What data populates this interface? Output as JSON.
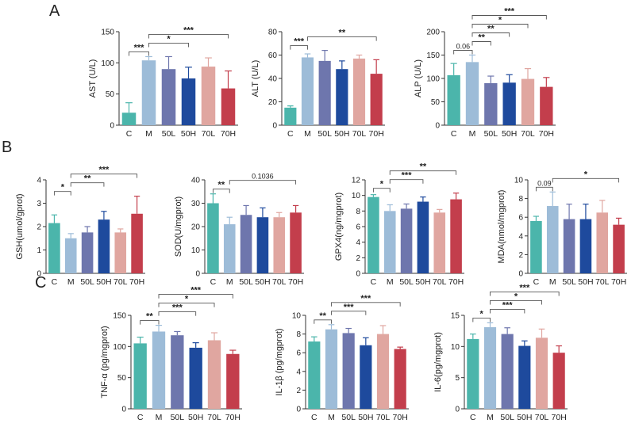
{
  "panels": [
    {
      "letter": "A"
    },
    {
      "letter": "B"
    },
    {
      "letter": "C"
    }
  ],
  "colors": [
    "#4bb5ab",
    "#9dbcd8",
    "#6e76ad",
    "#1e4a9d",
    "#e0a6a0",
    "#c33e4c"
  ],
  "chart_data": [
    {
      "type": "bar",
      "panel": "A",
      "ylabel": "AST (U/L)",
      "categories": [
        "C",
        "M",
        "50L",
        "50H",
        "70L",
        "70H"
      ],
      "values": [
        20,
        104,
        90,
        75,
        94,
        59
      ],
      "errors": [
        16,
        6,
        20,
        18,
        14,
        28
      ],
      "ylim": [
        0,
        150
      ],
      "yticks": [
        "0",
        "50",
        "100",
        "150"
      ],
      "comparisons": [
        {
          "from": 0,
          "to": 1,
          "label": "***"
        },
        {
          "from": 1,
          "to": 3,
          "label": "*"
        },
        {
          "from": 1,
          "to": 5,
          "label": "***"
        }
      ]
    },
    {
      "type": "bar",
      "panel": "A",
      "ylabel": "ALT (U/L)",
      "categories": [
        "C",
        "M",
        "50L",
        "50H",
        "70L",
        "70H"
      ],
      "values": [
        15,
        58,
        55,
        48,
        57,
        44
      ],
      "errors": [
        1.5,
        3,
        9,
        7,
        3,
        12
      ],
      "ylim": [
        0,
        80
      ],
      "yticks": [
        "0",
        "20",
        "40",
        "60",
        "80"
      ],
      "comparisons": [
        {
          "from": 0,
          "to": 1,
          "label": "***"
        },
        {
          "from": 1,
          "to": 5,
          "label": "**"
        }
      ]
    },
    {
      "type": "bar",
      "panel": "A",
      "ylabel": "ALP (U/L)",
      "categories": [
        "C",
        "M",
        "50L",
        "50H",
        "70L",
        "70H"
      ],
      "values": [
        107,
        135,
        90,
        91,
        99,
        82
      ],
      "errors": [
        25,
        15,
        15,
        17,
        22,
        20
      ],
      "ylim": [
        0,
        200
      ],
      "yticks": [
        "0",
        "50",
        "100",
        "150",
        "200"
      ],
      "comparisons": [
        {
          "from": 0,
          "to": 1,
          "label": "0.06"
        },
        {
          "from": 1,
          "to": 2,
          "label": "**"
        },
        {
          "from": 1,
          "to": 3,
          "label": "**"
        },
        {
          "from": 1,
          "to": 4,
          "label": "*"
        },
        {
          "from": 1,
          "to": 5,
          "label": "***"
        }
      ]
    },
    {
      "type": "bar",
      "panel": "B",
      "ylabel": "GSH(umol/gprot)",
      "categories": [
        "C",
        "M",
        "50L",
        "50H",
        "70L",
        "70H"
      ],
      "values": [
        2.15,
        1.5,
        1.75,
        2.3,
        1.75,
        2.55
      ],
      "errors": [
        0.35,
        0.2,
        0.25,
        0.35,
        0.15,
        0.75
      ],
      "ylim": [
        0,
        4
      ],
      "yticks": [
        "0",
        "1",
        "2",
        "3",
        "4"
      ],
      "comparisons": [
        {
          "from": 0,
          "to": 1,
          "label": "*"
        },
        {
          "from": 1,
          "to": 3,
          "label": "**"
        },
        {
          "from": 1,
          "to": 5,
          "label": "***"
        }
      ]
    },
    {
      "type": "bar",
      "panel": "B",
      "ylabel": "SOD(U/mgprot)",
      "categories": [
        "C",
        "M",
        "50L",
        "50H",
        "70L",
        "70H"
      ],
      "values": [
        30,
        21,
        25,
        24,
        24,
        26
      ],
      "errors": [
        4,
        3,
        4,
        4,
        2,
        3
      ],
      "ylim": [
        0,
        40
      ],
      "yticks": [
        "0",
        "10",
        "20",
        "30",
        "40"
      ],
      "comparisons": [
        {
          "from": 0,
          "to": 1,
          "label": "**"
        },
        {
          "from": 1,
          "to": 5,
          "label": "0.1036"
        }
      ]
    },
    {
      "type": "bar",
      "panel": "B",
      "ylabel": "GPX4(ng/mgprot)",
      "categories": [
        "C",
        "M",
        "50L",
        "50H",
        "70L",
        "70H"
      ],
      "values": [
        9.8,
        8.0,
        8.3,
        9.2,
        7.8,
        9.5
      ],
      "errors": [
        0.3,
        0.8,
        0.6,
        0.6,
        0.4,
        0.8
      ],
      "ylim": [
        0,
        12
      ],
      "yticks": [
        "0",
        "2",
        "4",
        "6",
        "8",
        "10",
        "12"
      ],
      "comparisons": [
        {
          "from": 0,
          "to": 1,
          "label": "*"
        },
        {
          "from": 1,
          "to": 3,
          "label": "***"
        },
        {
          "from": 1,
          "to": 5,
          "label": "**"
        }
      ]
    },
    {
      "type": "bar",
      "panel": "B",
      "ylabel": "MDA(nmol/mgprot)",
      "categories": [
        "C",
        "M",
        "50L",
        "50H",
        "70L",
        "70H"
      ],
      "values": [
        5.6,
        7.2,
        5.8,
        5.8,
        6.5,
        5.2
      ],
      "errors": [
        0.5,
        1.5,
        1.6,
        1.6,
        1.3,
        0.7
      ],
      "ylim": [
        0,
        10
      ],
      "yticks": [
        "0",
        "2",
        "4",
        "6",
        "8",
        "10"
      ],
      "comparisons": [
        {
          "from": 0,
          "to": 1,
          "label": "0.09"
        },
        {
          "from": 1,
          "to": 5,
          "label": "*"
        }
      ]
    },
    {
      "type": "bar",
      "panel": "C",
      "ylabel": "TNF-α (pg/mgprot)",
      "categories": [
        "C",
        "M",
        "50L",
        "50H",
        "70L",
        "70H"
      ],
      "values": [
        105,
        124,
        118,
        98,
        110,
        88
      ],
      "errors": [
        10,
        10,
        6,
        8,
        12,
        6
      ],
      "ylim": [
        0,
        150
      ],
      "yticks": [
        "0",
        "50",
        "100",
        "150"
      ],
      "comparisons": [
        {
          "from": 0,
          "to": 1,
          "label": "**"
        },
        {
          "from": 1,
          "to": 3,
          "label": "***"
        },
        {
          "from": 1,
          "to": 4,
          "label": "*"
        },
        {
          "from": 1,
          "to": 5,
          "label": "***"
        }
      ]
    },
    {
      "type": "bar",
      "panel": "C",
      "ylabel": "IL-1β (pg/mgprot)",
      "categories": [
        "C",
        "M",
        "50L",
        "50H",
        "70L",
        "70H"
      ],
      "values": [
        7.2,
        8.5,
        8.1,
        6.8,
        8.0,
        6.4
      ],
      "errors": [
        0.5,
        0.5,
        0.5,
        0.8,
        0.9,
        0.2
      ],
      "ylim": [
        0,
        10
      ],
      "yticks": [
        "0",
        "2",
        "4",
        "6",
        "8",
        "10"
      ],
      "comparisons": [
        {
          "from": 0,
          "to": 1,
          "label": "**"
        },
        {
          "from": 1,
          "to": 3,
          "label": "***"
        },
        {
          "from": 1,
          "to": 5,
          "label": "***"
        }
      ]
    },
    {
      "type": "bar",
      "panel": "C",
      "ylabel": "IL-6(pg/mgprot)",
      "categories": [
        "C",
        "M",
        "50L",
        "50H",
        "70L",
        "70H"
      ],
      "values": [
        11.2,
        13.1,
        12.0,
        10.1,
        11.4,
        9.0
      ],
      "errors": [
        0.8,
        0.7,
        1.0,
        0.8,
        1.4,
        1.1
      ],
      "ylim": [
        0,
        15
      ],
      "yticks": [
        "0",
        "5",
        "10",
        "15"
      ],
      "comparisons": [
        {
          "from": 0,
          "to": 1,
          "label": "*"
        },
        {
          "from": 1,
          "to": 3,
          "label": "***"
        },
        {
          "from": 1,
          "to": 4,
          "label": "*"
        },
        {
          "from": 1,
          "to": 5,
          "label": "***"
        }
      ]
    }
  ]
}
